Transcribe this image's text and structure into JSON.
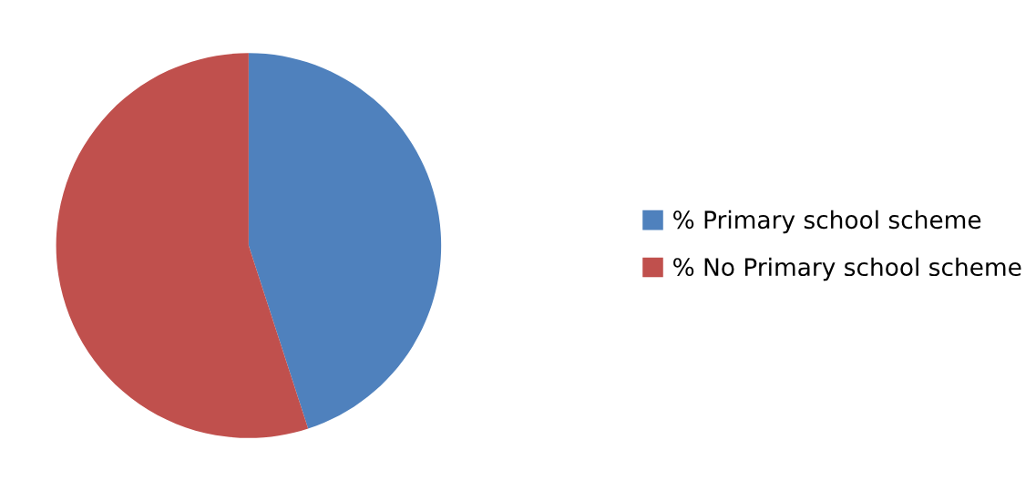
{
  "chart_data": {
    "type": "pie",
    "categories": [
      "% Primary school scheme",
      "% No Primary school scheme"
    ],
    "values": [
      45,
      55
    ],
    "colors": [
      "#4f81bd",
      "#c0504d"
    ],
    "legend": "right"
  }
}
